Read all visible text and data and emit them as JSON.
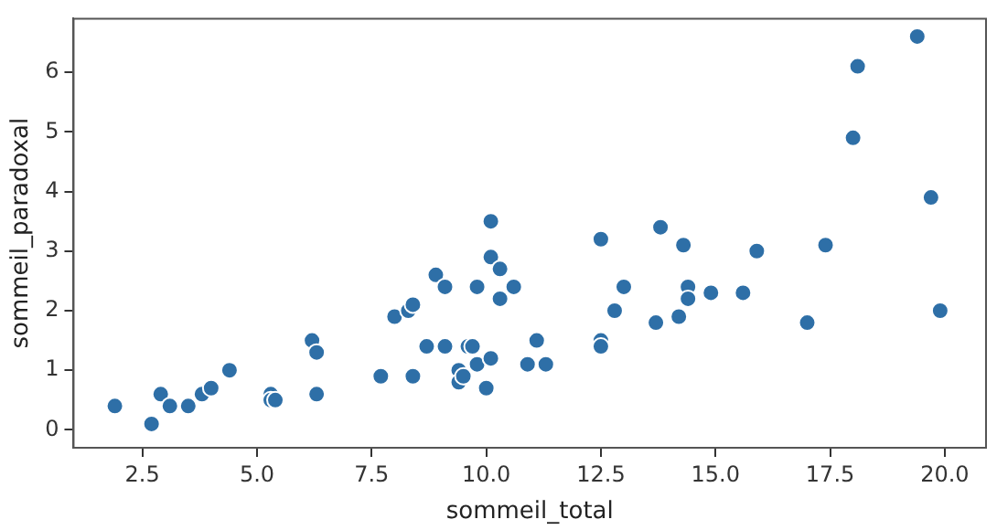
{
  "chart_data": {
    "type": "scatter",
    "xlabel": "sommeil_total",
    "ylabel": "sommeil_paradoxal",
    "xlim": [
      1.0,
      20.9
    ],
    "ylim": [
      -0.3,
      6.9
    ],
    "xticks": [
      {
        "value": 2.5,
        "label": "2.5"
      },
      {
        "value": 5,
        "label": "5.0"
      },
      {
        "value": 7.5,
        "label": "7.5"
      },
      {
        "value": 10,
        "label": "10.0"
      },
      {
        "value": 12.5,
        "label": "12.5"
      },
      {
        "value": 15,
        "label": "15.0"
      },
      {
        "value": 17.5,
        "label": "17.5"
      },
      {
        "value": 20,
        "label": "20.0"
      }
    ],
    "yticks": [
      0,
      1,
      2,
      3,
      4,
      5,
      6
    ],
    "grid": false,
    "legend": false,
    "marker": "circle",
    "series": [
      {
        "color": "#2e6fa7",
        "x": [
          1.9,
          2.7,
          2.9,
          3.1,
          3.5,
          3.8,
          4.0,
          4.4,
          5.3,
          5.3,
          5.4,
          6.2,
          6.3,
          6.3,
          7.7,
          8.0,
          8.3,
          8.4,
          8.4,
          8.7,
          8.9,
          9.1,
          9.1,
          9.4,
          9.4,
          9.5,
          9.6,
          9.7,
          9.8,
          9.8,
          10.0,
          10.1,
          10.1,
          10.1,
          10.3,
          10.3,
          10.6,
          10.9,
          11.1,
          11.3,
          12.5,
          12.5,
          12.5,
          12.8,
          13.0,
          13.7,
          13.8,
          14.2,
          14.3,
          14.4,
          14.4,
          14.9,
          15.6,
          15.9,
          17.0,
          17.4,
          18.0,
          18.1,
          19.4,
          19.7,
          19.9
        ],
        "values": [
          0.4,
          0.1,
          0.6,
          0.4,
          0.4,
          0.6,
          0.7,
          1.0,
          0.6,
          0.5,
          0.5,
          1.5,
          1.3,
          0.6,
          0.9,
          1.9,
          2.0,
          2.1,
          0.9,
          1.4,
          2.6,
          1.4,
          2.4,
          1.0,
          0.8,
          0.9,
          1.4,
          1.4,
          2.4,
          1.1,
          0.7,
          1.2,
          3.5,
          2.9,
          2.7,
          2.2,
          2.4,
          1.1,
          1.5,
          1.1,
          1.5,
          1.4,
          3.2,
          2.0,
          2.4,
          1.8,
          3.4,
          1.9,
          3.1,
          2.4,
          2.2,
          2.3,
          2.3,
          3.0,
          1.8,
          3.1,
          4.9,
          6.1,
          6.6,
          3.9,
          2.0
        ]
      }
    ]
  }
}
